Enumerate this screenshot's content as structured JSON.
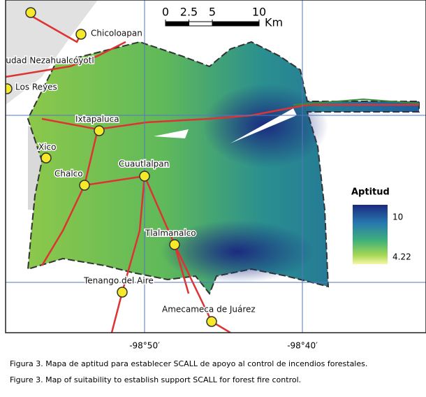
{
  "scale_bar": {
    "ticks": [
      0,
      2.5,
      5,
      10
    ],
    "unit": "Km"
  },
  "towns": [
    {
      "label": "Chicoloapan"
    },
    {
      "label": "iudad Nezahualcóyotl"
    },
    {
      "label": "Los Reyes"
    },
    {
      "label": "Ixtapaluca"
    },
    {
      "label": "Xico"
    },
    {
      "label": "Chalco"
    },
    {
      "label": "Cuautlalpan"
    },
    {
      "label": "Tlalmanalco"
    },
    {
      "label": "Tenango del Aire"
    },
    {
      "label": "Amecameca de Juárez"
    }
  ],
  "legend": {
    "title": "Aptitud",
    "max": 10,
    "min": 4.22
  },
  "longitude_labels": [
    "-98°50′",
    "-98°40′"
  ],
  "caption": {
    "es": "Figura 3. Mapa de aptitud para establecer SCALL de apoyo al control de incendios forestales.",
    "en": "Figure 3. Map of suitability to establish support SCALL for forest fire control."
  }
}
